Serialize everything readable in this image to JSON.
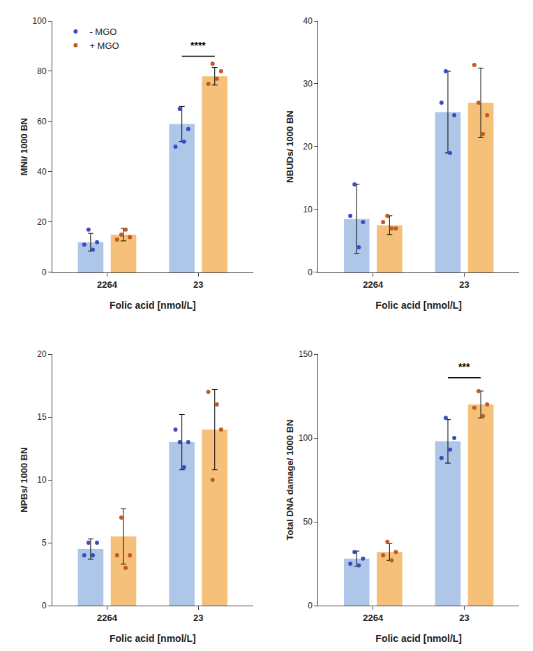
{
  "chart_data": [
    {
      "type": "bar",
      "xlabel": "Folic acid [nmol/L]",
      "ylabel": "MNi/ 1000 BN",
      "categories": [
        "2264",
        "23"
      ],
      "series": [
        {
          "name": "- MGO",
          "type": "bar",
          "color": "#aec6e8",
          "values": [
            12.0,
            59.0
          ],
          "errors": [
            3.5,
            7.0
          ]
        },
        {
          "name": "+ MGO",
          "type": "bar",
          "color": "#f5c07a",
          "values": [
            15.0,
            78.0
          ],
          "errors": [
            2.5,
            3.5
          ]
        },
        {
          "name": "- MGO",
          "type": "scatter",
          "color": "#3b4cc0",
          "values": [
            [
              11,
              17,
              9,
              12
            ],
            [
              50,
              65,
              52,
              57
            ]
          ]
        },
        {
          "name": "+ MGO",
          "type": "scatter",
          "color": "#c05a1f",
          "values": [
            [
              13,
              15,
              17,
              14
            ],
            [
              75,
              83,
              77,
              80
            ]
          ]
        }
      ],
      "annotations": [
        {
          "category": "23",
          "y": 86,
          "text": "****"
        }
      ],
      "ylim": [
        0,
        100
      ],
      "yticks": [
        0,
        20,
        40,
        60,
        80,
        100
      ],
      "grid": false,
      "legend": "upper left"
    },
    {
      "type": "bar",
      "xlabel": "Folic acid [nmol/L]",
      "ylabel": "NBUDs/ 1000 BN",
      "categories": [
        "2264",
        "23"
      ],
      "series": [
        {
          "name": "- MGO",
          "type": "bar",
          "color": "#aec6e8",
          "values": [
            8.5,
            25.5
          ],
          "errors": [
            5.5,
            6.5
          ]
        },
        {
          "name": "+ MGO",
          "type": "bar",
          "color": "#f5c07a",
          "values": [
            7.5,
            27.0
          ],
          "errors": [
            1.5,
            5.5
          ]
        },
        {
          "name": "- MGO",
          "type": "scatter",
          "color": "#3b4cc0",
          "values": [
            [
              9,
              14,
              4,
              8
            ],
            [
              27,
              32,
              19,
              25
            ]
          ]
        },
        {
          "name": "+ MGO",
          "type": "scatter",
          "color": "#c05a1f",
          "values": [
            [
              8,
              9,
              7,
              7
            ],
            [
              33,
              27,
              22,
              25
            ]
          ]
        }
      ],
      "ylim": [
        0,
        40
      ],
      "yticks": [
        0,
        10,
        20,
        30,
        40
      ],
      "grid": false
    },
    {
      "type": "bar",
      "xlabel": "Folic acid [nmol/L]",
      "ylabel": "NPBs/ 1000 BN",
      "categories": [
        "2264",
        "23"
      ],
      "series": [
        {
          "name": "- MGO",
          "type": "bar",
          "color": "#aec6e8",
          "values": [
            4.5,
            13.0
          ],
          "errors": [
            0.8,
            2.2
          ]
        },
        {
          "name": "+ MGO",
          "type": "bar",
          "color": "#f5c07a",
          "values": [
            5.5,
            14.0
          ],
          "errors": [
            2.2,
            3.2
          ]
        },
        {
          "name": "- MGO",
          "type": "scatter",
          "color": "#3b4cc0",
          "values": [
            [
              4,
              5,
              4,
              5
            ],
            [
              14,
              13,
              11,
              13
            ]
          ]
        },
        {
          "name": "+ MGO",
          "type": "scatter",
          "color": "#c05a1f",
          "values": [
            [
              4,
              7,
              3,
              4
            ],
            [
              17,
              10,
              16,
              14
            ]
          ]
        }
      ],
      "ylim": [
        0,
        20
      ],
      "yticks": [
        0,
        5,
        10,
        15,
        20
      ],
      "grid": false
    },
    {
      "type": "bar",
      "xlabel": "Folic acid [nmol/L]",
      "ylabel": "Total DNA damage/ 1000 BN",
      "categories": [
        "2264",
        "23"
      ],
      "series": [
        {
          "name": "- MGO",
          "type": "bar",
          "color": "#aec6e8",
          "values": [
            28.0,
            98.0
          ],
          "errors": [
            4.5,
            13.0
          ]
        },
        {
          "name": "+ MGO",
          "type": "bar",
          "color": "#f5c07a",
          "values": [
            32.0,
            120.0
          ],
          "errors": [
            5.0,
            8.0
          ]
        },
        {
          "name": "- MGO",
          "type": "scatter",
          "color": "#3b4cc0",
          "values": [
            [
              25,
              32,
              24,
              28
            ],
            [
              88,
              112,
              93,
              100
            ]
          ]
        },
        {
          "name": "+ MGO",
          "type": "scatter",
          "color": "#c05a1f",
          "values": [
            [
              30,
              38,
              27,
              32
            ],
            [
              118,
              128,
              113,
              120
            ]
          ]
        }
      ],
      "annotations": [
        {
          "category": "23",
          "y": 136,
          "text": "***"
        }
      ],
      "ylim": [
        0,
        150
      ],
      "yticks": [
        0,
        50,
        100,
        150
      ],
      "grid": false
    }
  ]
}
